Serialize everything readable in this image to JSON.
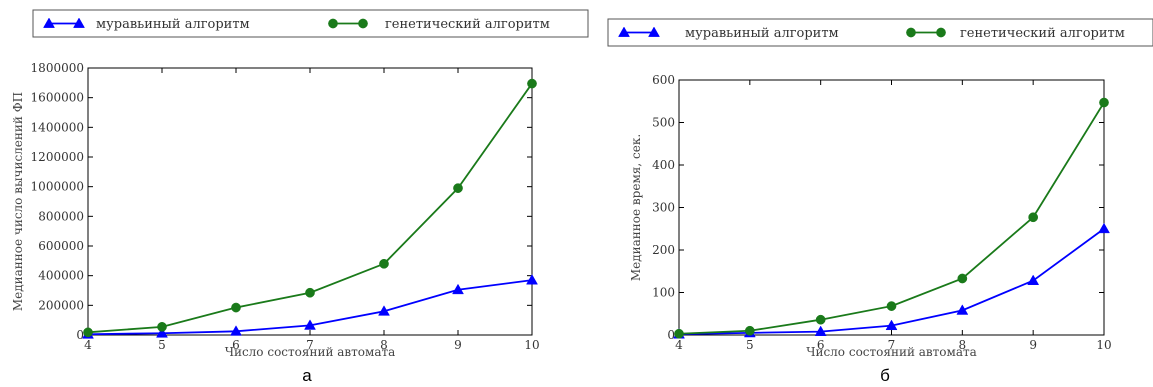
{
  "top_text": "",
  "chart_data": [
    {
      "type": "line",
      "panel_label": "а",
      "title": "",
      "xlabel": "Число состояний автомата",
      "ylabel": "Медианное число вычислений ФП",
      "x": [
        4,
        5,
        6,
        7,
        8,
        9,
        10
      ],
      "xlim": [
        4,
        10
      ],
      "ylim": [
        0,
        1800000
      ],
      "xticks": [
        "4",
        "5",
        "6",
        "7",
        "8",
        "9",
        "10"
      ],
      "yticks": [
        0,
        200000,
        400000,
        600000,
        800000,
        1000000,
        1200000,
        1400000,
        1600000,
        1800000
      ],
      "ytick_labels": [
        "0",
        "200000",
        "400000",
        "600000",
        "800000",
        "1000000",
        "1200000",
        "1400000",
        "1600000",
        "1800000"
      ],
      "grid": false,
      "legend_position": "top",
      "series": [
        {
          "name": "муравьиный алгоритм",
          "color": "#0000ff",
          "marker": "triangle",
          "values": [
            5000,
            12000,
            25000,
            65000,
            160000,
            305000,
            370000
          ]
        },
        {
          "name": "генетический алгоритм",
          "color": "#1a7a1a",
          "marker": "circle",
          "values": [
            18000,
            55000,
            185000,
            285000,
            480000,
            990000,
            1695000
          ]
        }
      ]
    },
    {
      "type": "line",
      "panel_label": "б",
      "title": "",
      "xlabel": "Число состояний автомата",
      "ylabel": "Медианное время, сек.",
      "x": [
        4,
        5,
        6,
        7,
        8,
        9,
        10
      ],
      "xlim": [
        4,
        10
      ],
      "ylim": [
        0,
        600
      ],
      "xticks": [
        "4",
        "5",
        "6",
        "7",
        "8",
        "9",
        "10"
      ],
      "yticks": [
        0,
        100,
        200,
        300,
        400,
        500,
        600
      ],
      "ytick_labels": [
        "0",
        "100",
        "200",
        "300",
        "400",
        "500",
        "600"
      ],
      "grid": false,
      "legend_position": "top",
      "series": [
        {
          "name": "муравьиный алгоритм",
          "color": "#0000ff",
          "marker": "triangle",
          "values": [
            2,
            5,
            8,
            22,
            58,
            128,
            250
          ]
        },
        {
          "name": "генетический алгоритм",
          "color": "#1a7a1a",
          "marker": "circle",
          "values": [
            3,
            10,
            36,
            68,
            133,
            277,
            547
          ]
        }
      ]
    }
  ]
}
